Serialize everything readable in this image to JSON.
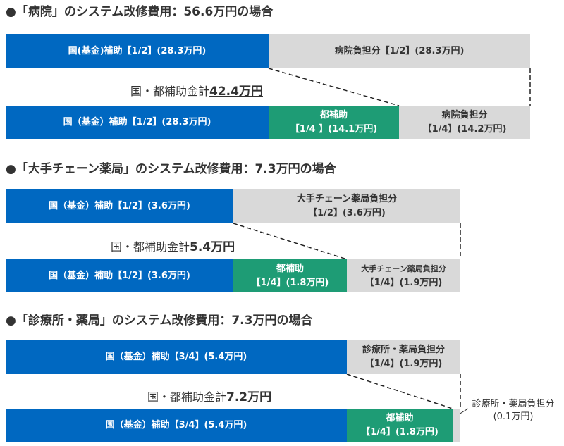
{
  "sections": [
    {
      "heading": "●「病院」のシステム改修費用：56.6万円の場合",
      "top_row": {
        "national": "国(基金)補助【1/2】(28.3万円)",
        "other": "病院負担分【1/2】(28.3万円)"
      },
      "total": {
        "prefix": "国・都補助金計",
        "amount": "42.4万円"
      },
      "bottom_row": {
        "national": "国（基金）補助【1/2】(28.3万円)",
        "metro_title": "都補助",
        "metro_detail": "【1/4 】(14.1万円)",
        "other_title": "病院負担分",
        "other_detail": "【1/4】(14.2万円)"
      }
    },
    {
      "heading": "●「大手チェーン薬局」のシステム改修費用：7.3万円の場合",
      "top_row": {
        "national": "国（基金）補助【1/2】(3.6万円)",
        "other_title": "大手チェーン薬局負担分",
        "other_detail": "【1/2】(3.6万円)"
      },
      "total": {
        "prefix": "国・都補助金計",
        "amount": "5.4万円"
      },
      "bottom_row": {
        "national": "国（基金）補助【1/2】(3.6万円)",
        "metro_title": "都補助",
        "metro_detail": "【1/4】(1.8万円)",
        "other_title": "大手チェーン薬局負担分",
        "other_detail": "【1/4】(1.9万円)"
      }
    },
    {
      "heading": "●「診療所・薬局」のシステム改修費用：7.3万円の場合",
      "top_row": {
        "national": "国（基金）補助【3/4】(5.4万円)",
        "other_title": "診療所・薬局負担分",
        "other_detail": "【1/4】(1.9万円)"
      },
      "total": {
        "prefix": "国・都補助金計",
        "amount": "7.2万円"
      },
      "bottom_row": {
        "national": "国（基金）補助【3/4】(5.4万円)",
        "metro_title": "都補助",
        "metro_detail": "【1/4】(1.8万円)"
      },
      "callout": {
        "title": "診療所・薬局負担分",
        "detail": "(0.1万円)"
      }
    }
  ],
  "colors": {
    "national": "#0068c1",
    "metro": "#1e9c75",
    "self_pay": "#d9d9d9"
  }
}
